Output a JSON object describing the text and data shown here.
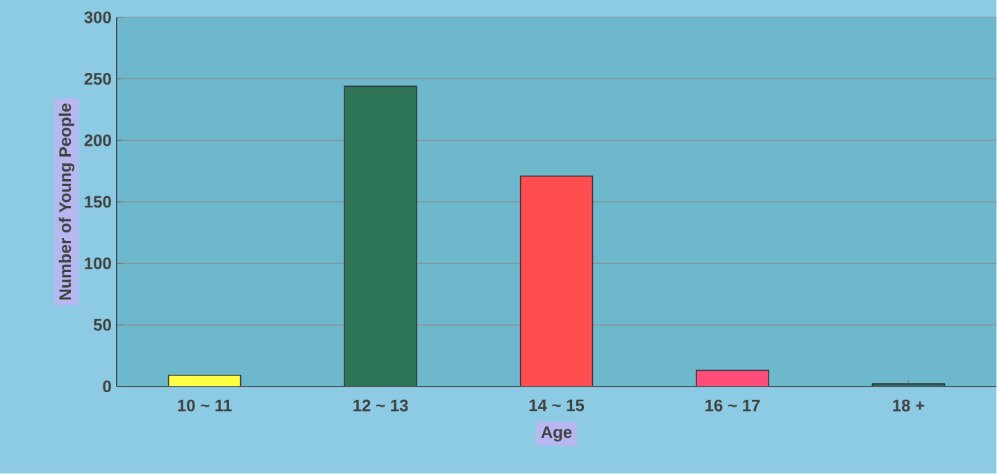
{
  "chart_data": {
    "type": "bar",
    "xlabel": "Age",
    "ylabel": "Number of Young People",
    "categories": [
      "10 ~ 11",
      "12 ~ 13",
      "14 ~ 15",
      "16 ~ 17",
      "18 +"
    ],
    "values": [
      9,
      244,
      171,
      13,
      2
    ],
    "colors": [
      "#ffff44",
      "#2e7558",
      "#ff4d50",
      "#ff4d7a",
      "#2e6b6b"
    ],
    "ylim": [
      0,
      300
    ],
    "yticks": [
      0,
      50,
      100,
      150,
      200,
      250,
      300
    ],
    "grid": "y"
  }
}
